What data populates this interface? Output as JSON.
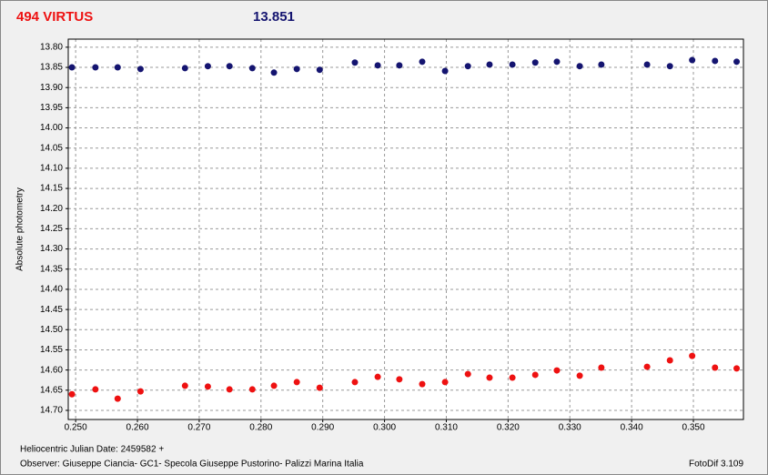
{
  "chart_data": {
    "type": "scatter",
    "title": "494 VIRTUS",
    "subtitle": "13.851",
    "y_label": "Absolute photometry",
    "x_label": "Heliocentric Julian Date: 2459582 +",
    "observer": "Observer: Giuseppe Ciancia- GC1- Specola Giuseppe Pustorino- Palizzi Marina Italia",
    "software": "FotoDif 3.109",
    "grid": true,
    "y_inverted": true,
    "xlim": [
      0.2488,
      0.3581
    ],
    "ylim": [
      13.78,
      14.7226
    ],
    "xticks": [
      {
        "value": 0.25,
        "label": "0.250"
      },
      {
        "value": 0.26,
        "label": "0.260"
      },
      {
        "value": 0.27,
        "label": "0.270"
      },
      {
        "value": 0.28,
        "label": "0.280"
      },
      {
        "value": 0.29,
        "label": "0.290"
      },
      {
        "value": 0.3,
        "label": "0.300"
      },
      {
        "value": 0.31,
        "label": "0.310"
      },
      {
        "value": 0.32,
        "label": "0.320"
      },
      {
        "value": 0.33,
        "label": "0.330"
      },
      {
        "value": 0.34,
        "label": "0.340"
      },
      {
        "value": 0.35,
        "label": "0.350"
      }
    ],
    "yticks": [
      {
        "value": 13.8,
        "label": "13.80"
      },
      {
        "value": 13.85,
        "label": "13.85"
      },
      {
        "value": 13.9,
        "label": "13.90"
      },
      {
        "value": 13.95,
        "label": "13.95"
      },
      {
        "value": 14.0,
        "label": "14.00"
      },
      {
        "value": 14.05,
        "label": "14.05"
      },
      {
        "value": 14.1,
        "label": "14.10"
      },
      {
        "value": 14.15,
        "label": "14.15"
      },
      {
        "value": 14.2,
        "label": "14.20"
      },
      {
        "value": 14.25,
        "label": "14.25"
      },
      {
        "value": 14.3,
        "label": "14.30"
      },
      {
        "value": 14.35,
        "label": "14.35"
      },
      {
        "value": 14.4,
        "label": "14.40"
      },
      {
        "value": 14.45,
        "label": "14.45"
      },
      {
        "value": 14.5,
        "label": "14.50"
      },
      {
        "value": 14.55,
        "label": "14.55"
      },
      {
        "value": 14.6,
        "label": "14.60"
      },
      {
        "value": 14.65,
        "label": "14.65"
      },
      {
        "value": 14.7,
        "label": "14.70"
      }
    ],
    "x": [
      0.2494,
      0.2532,
      0.2568,
      0.2605,
      0.2677,
      0.2714,
      0.2749,
      0.2786,
      0.2821,
      0.2858,
      0.2895,
      0.2952,
      0.2989,
      0.3024,
      0.3061,
      0.3098,
      0.3135,
      0.317,
      0.3207,
      0.3244,
      0.3279,
      0.3316,
      0.3351,
      0.3425,
      0.3462,
      0.3498,
      0.3535,
      0.357
    ],
    "series": [
      {
        "color": "#141470",
        "values": [
          13.85,
          13.85,
          13.85,
          13.854,
          13.852,
          13.847,
          13.847,
          13.852,
          13.863,
          13.854,
          13.856,
          13.838,
          13.845,
          13.845,
          13.836,
          13.859,
          13.847,
          13.843,
          13.843,
          13.838,
          13.836,
          13.847,
          13.843,
          13.843,
          13.847,
          13.832,
          13.834,
          13.836
        ]
      },
      {
        "color": "#ee1111",
        "values": [
          14.66,
          14.648,
          14.671,
          14.653,
          14.639,
          14.641,
          14.648,
          14.648,
          14.639,
          14.63,
          14.644,
          14.63,
          14.617,
          14.623,
          14.635,
          14.63,
          14.61,
          14.619,
          14.619,
          14.612,
          14.601,
          14.614,
          14.594,
          14.592,
          14.576,
          14.565,
          14.594,
          14.596
        ]
      }
    ]
  }
}
